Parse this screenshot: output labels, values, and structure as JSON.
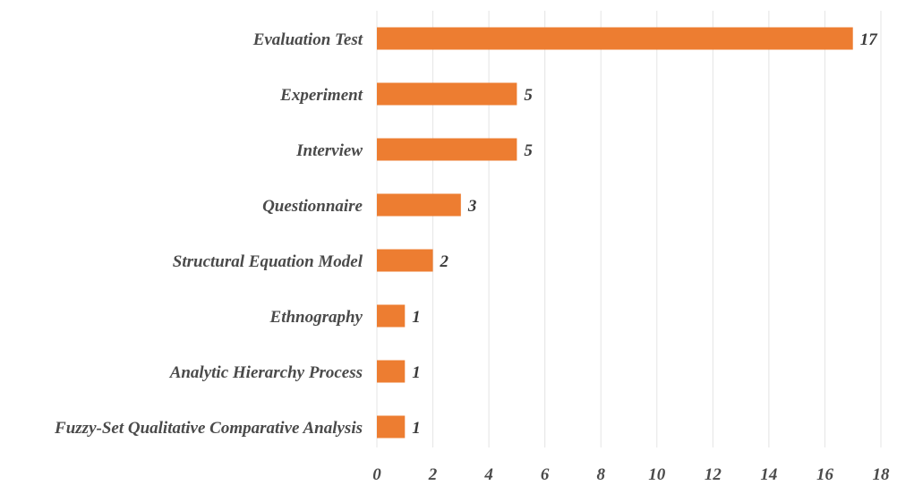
{
  "chart_data": {
    "type": "bar",
    "orientation": "horizontal",
    "categories": [
      "Evaluation Test",
      "Experiment",
      "Interview",
      "Questionnaire",
      "Structural Equation Model",
      "Ethnography",
      "Analytic Hierarchy Process",
      "Fuzzy-Set Qualitative Comparative Analysis"
    ],
    "values": [
      17,
      5,
      5,
      3,
      2,
      1,
      1,
      1
    ],
    "xlim": [
      0,
      18
    ],
    "xticks": [
      "0",
      "2",
      "4",
      "6",
      "8",
      "10",
      "12",
      "14",
      "16",
      "18"
    ],
    "grid": "vertical",
    "data_labels": true,
    "bar_color": "#ED7D31"
  }
}
